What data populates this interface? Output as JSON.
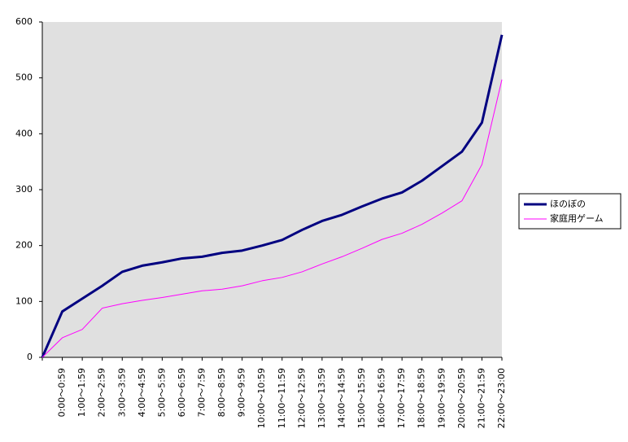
{
  "chart_data": {
    "type": "line",
    "categories": [
      null,
      "0:00～0:59",
      "1:00～1:59",
      "2:00～2:59",
      "3:00～3:59",
      "4:00～4:59",
      "5:00～5:59",
      "6:00～6:59",
      "7:00～7:59",
      "8:00～8:59",
      "9:00～9:59",
      "10:00～10:59",
      "11:00～11:59",
      "12:00～12:59",
      "13:00～13:59",
      "14:00～14:59",
      "15:00～15:59",
      "16:00～16:59",
      "17:00～17:59",
      "18:00～18:59",
      "19:00～19:59",
      "20:00～20:59",
      "21:00～21:59",
      "22:00～23:00"
    ],
    "series": [
      {
        "name": "ほのぼの",
        "color": "#000080",
        "values": [
          0,
          82,
          105,
          128,
          153,
          164,
          170,
          177,
          180,
          187,
          191,
          200,
          210,
          228,
          244,
          255,
          270,
          284,
          295,
          316,
          342,
          368,
          420,
          577
        ]
      },
      {
        "name": "家庭用ゲーム",
        "color": "#ff00ff",
        "values": [
          0,
          35,
          50,
          88,
          96,
          102,
          107,
          113,
          119,
          122,
          128,
          137,
          143,
          153,
          167,
          180,
          195,
          211,
          222,
          238,
          258,
          280,
          345,
          497
        ]
      }
    ],
    "ylim": [
      0,
      600
    ],
    "yticks": [
      0,
      100,
      200,
      300,
      400,
      500,
      600
    ],
    "grid": false,
    "legend": "right"
  }
}
